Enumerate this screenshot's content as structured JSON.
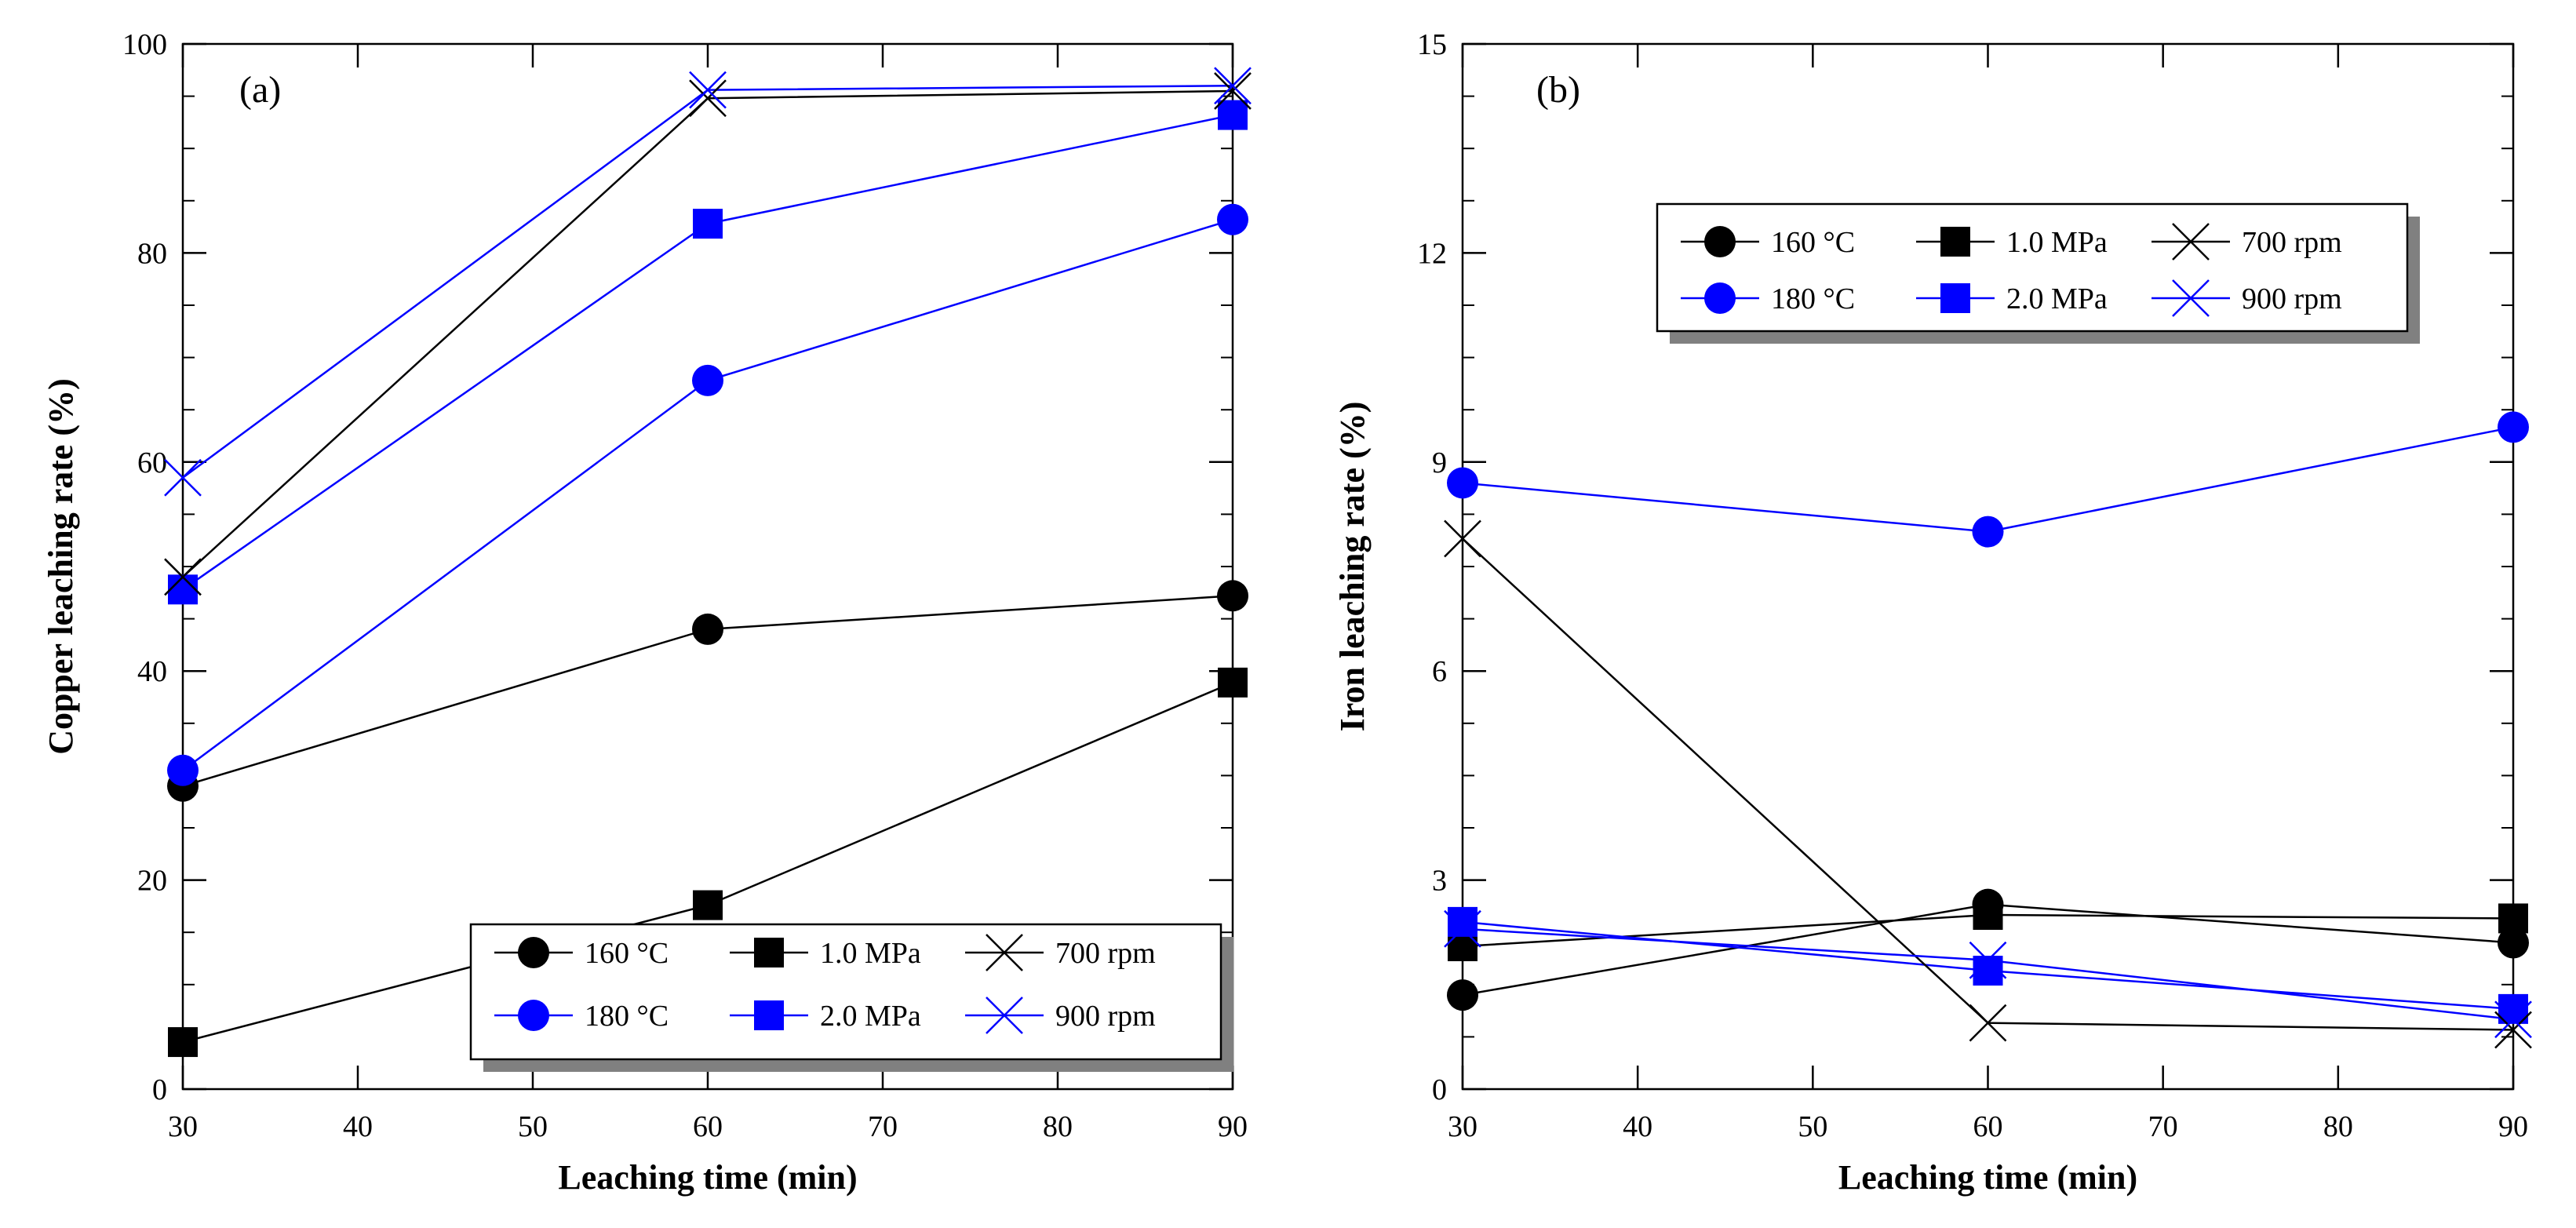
{
  "chart_data": [
    {
      "type": "line",
      "panel_label": "(a)",
      "xlabel": "Leaching time (min)",
      "ylabel": "Copper leaching rate (%)",
      "xlim": [
        30,
        90
      ],
      "ylim": [
        0,
        100
      ],
      "x_ticks": [
        30,
        40,
        50,
        60,
        70,
        80,
        90
      ],
      "y_ticks": [
        0,
        20,
        40,
        60,
        80,
        100
      ],
      "y_minor_step": 5,
      "legend_position": "bottom-right",
      "x": [
        30,
        60,
        90
      ],
      "series": [
        {
          "name": "160 °C",
          "marker": "circle",
          "color": "#000000",
          "values": [
            29.0,
            44.0,
            47.2
          ]
        },
        {
          "name": "180 °C",
          "marker": "circle",
          "color": "#0000ff",
          "values": [
            30.5,
            67.8,
            83.2
          ]
        },
        {
          "name": "1.0 MPa",
          "marker": "square",
          "color": "#000000",
          "values": [
            4.5,
            17.6,
            38.9
          ]
        },
        {
          "name": "2.0 MPa",
          "marker": "square",
          "color": "#0000ff",
          "values": [
            47.8,
            82.8,
            93.2
          ]
        },
        {
          "name": "700 rpm",
          "marker": "x",
          "color": "#000000",
          "values": [
            49.0,
            94.8,
            95.5
          ]
        },
        {
          "name": "900 rpm",
          "marker": "x",
          "color": "#0000ff",
          "values": [
            58.5,
            95.6,
            96.0
          ]
        }
      ]
    },
    {
      "type": "line",
      "panel_label": "(b)",
      "xlabel": "Leaching time (min)",
      "ylabel": "Iron leaching rate (%)",
      "xlim": [
        30,
        90
      ],
      "ylim": [
        0,
        15
      ],
      "x_ticks": [
        30,
        40,
        50,
        60,
        70,
        80,
        90
      ],
      "y_ticks": [
        0,
        3,
        6,
        9,
        12,
        15
      ],
      "y_minor_step": 0.75,
      "legend_position": "top-center",
      "x": [
        30,
        60,
        90
      ],
      "series": [
        {
          "name": "160 °C",
          "marker": "circle",
          "color": "#000000",
          "values": [
            1.35,
            2.65,
            2.1
          ]
        },
        {
          "name": "180 °C",
          "marker": "circle",
          "color": "#0000ff",
          "values": [
            8.7,
            8.0,
            9.5
          ]
        },
        {
          "name": "1.0 MPa",
          "marker": "square",
          "color": "#000000",
          "values": [
            2.05,
            2.5,
            2.45
          ]
        },
        {
          "name": "2.0 MPa",
          "marker": "square",
          "color": "#0000ff",
          "values": [
            2.4,
            1.7,
            1.15
          ]
        },
        {
          "name": "700 rpm",
          "marker": "x",
          "color": "#000000",
          "values": [
            7.9,
            0.95,
            0.85
          ]
        },
        {
          "name": "900 rpm",
          "marker": "x",
          "color": "#0000ff",
          "values": [
            2.3,
            1.85,
            1.0
          ]
        }
      ]
    }
  ]
}
